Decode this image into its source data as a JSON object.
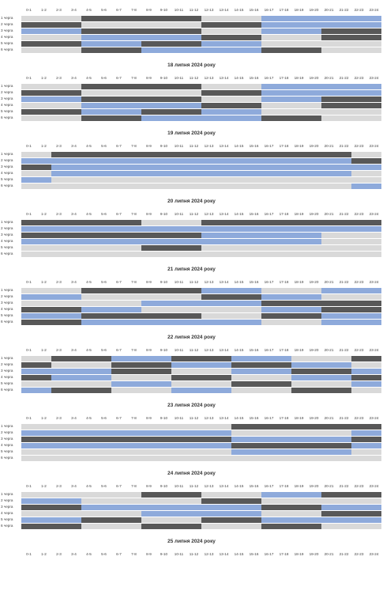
{
  "hours": [
    "0-1",
    "1-2",
    "2-3",
    "3-4",
    "4-5",
    "5-6",
    "6-7",
    "7-8",
    "8-9",
    "9-10",
    "10-11",
    "11-12",
    "12-13",
    "13-14",
    "14-15",
    "15-16",
    "16-17",
    "17-18",
    "18-19",
    "19-20",
    "20-21",
    "21-22",
    "22-23",
    "23-24"
  ],
  "queues": [
    "1 черга",
    "2 черга",
    "3 черга",
    "4 черга",
    "5 черга",
    "6 черга"
  ],
  "legend_colors": {
    "dark": "#585858",
    "blue": "#8eaadb",
    "light": "#d9d9d9"
  },
  "schedules": [
    {
      "title": "",
      "rows": [
        "LLLLDDDDDDDDLLLLBBBBBBBB",
        "DDDDLLLLLLLLDDDDBBBBBBBB",
        "BBBBDDDDDDDDLLLLBBBBDDDD",
        "LLLLBBBBBBBBDDDDLLLLDDDD",
        "DDDDBBBBDDDDBBBBLLLLLLLL",
        "LLLLDDDDBBBBBBBBDDDDLLLL"
      ]
    },
    {
      "title": "18 липня 2024 року",
      "rows": [
        "LLLLDDDDDDDDLLLLBBBBBBBB",
        "DDDDLLLLLLLLDDDDBBBBBBBB",
        "BBBBDDDDDDDDLLLLBBBBDDDD",
        "LLLLBBBBBBBBDDDDLLLLDDDD",
        "DDDDBBBBDDDDBBBBLLLLLLLL",
        "LLLLDDDDBBBBBBBBDDDDLLLL"
      ]
    },
    {
      "title": "19 липня 2024 року",
      "rows": [
        "LLDDDDDDDDDDDDDDDDDDDDLL",
        "BBBBBBBBBBBBBBBBBBBBBBDD",
        "DDBBBBBBBBBBBBBBBBBBBBBB",
        "LLBBBBBBBBBBBBBBBBBBBBLL",
        "BBLLLLLLLLLLLLLLLLLLLLLL",
        "LLLLLLLLLLLLLLLLLLLLLLBB"
      ]
    },
    {
      "title": "20 липня 2024 року",
      "rows": [
        "DDDDDDDDLLLLDDDDDDDDDDDD",
        "BBBBBBBBBBBBBBBBBBBBBBBB",
        "DDDDDDDDDDDDBBBBBBBBLLLL",
        "BBBBBBBBBBBBBBBBBBBBLLLL",
        "LLLLLLLLDDDDLLLLLLLLLLLL",
        "LLLLLLLLLLLLLLLLLLLLLLLL"
      ]
    },
    {
      "title": "21 липня 2024 року",
      "rows": [
        "LLLLDDDDDDDDBBBBLLLLBBBB",
        "BBBBLLLLLLLLDDDDBBBBLLLL",
        "LLLLLLLLBBBBBBBBDDDDDDDD",
        "DDDDBBBBLLLLLLLLBBBBDDDD",
        "BBBBDDDDDDDDLLLLDDDDBBBB",
        "DDDDBBBBBBBBBBBBLLLLBBBB"
      ]
    },
    {
      "title": "22 липня 2024 року",
      "rows": [
        "LLDDDDBBBBDDDDBBBBLLLLDD",
        "DDLLLLDDDDBBBBDDDDBBBBLL",
        "BBBBBBDDDDLLLLBBBBDDDDBB",
        "DDBBBBLLLLDDDDLLLLBBBBDD",
        "LLLLLLBBBBLLLLDDDDLLLLBB",
        "BBDDDDLLLLBBBBLLLLDDDDLL"
      ]
    },
    {
      "title": "23 липня 2024 року",
      "rows": [
        "LLLLLLLLLLLLLLDDDDDDDDDD",
        "BBBBBBBBBBBBBBLLLLLLLLBB",
        "DDDDDDDDDDDDDDBBBBBBBBDD",
        "BBBBBBBBBBBBBBDDDDDDDDBB",
        "LLLLLLLLLLLLLLBBBBBBBBLL",
        "LLLLLLLLLLLLLLLLLLLLLLLL"
      ]
    },
    {
      "title": "24 липня 2024 року",
      "rows": [
        "LLLLLLLLDDDDLLLLBBBBDDDD",
        "BBBBLLLLLLLLDDDDLLLLLLLL",
        "DDDDBBBBBBBBBBBBDDDDBBBB",
        "LLLLLLLLBBBBBBBBLLLLDDDD",
        "BBBBDDDDLLLLDDDDBBBBBBBB",
        "DDDDLLLLDDDDLLLLDDDDLLLL"
      ]
    },
    {
      "title": "25 липня 2024 року",
      "rows": []
    }
  ]
}
